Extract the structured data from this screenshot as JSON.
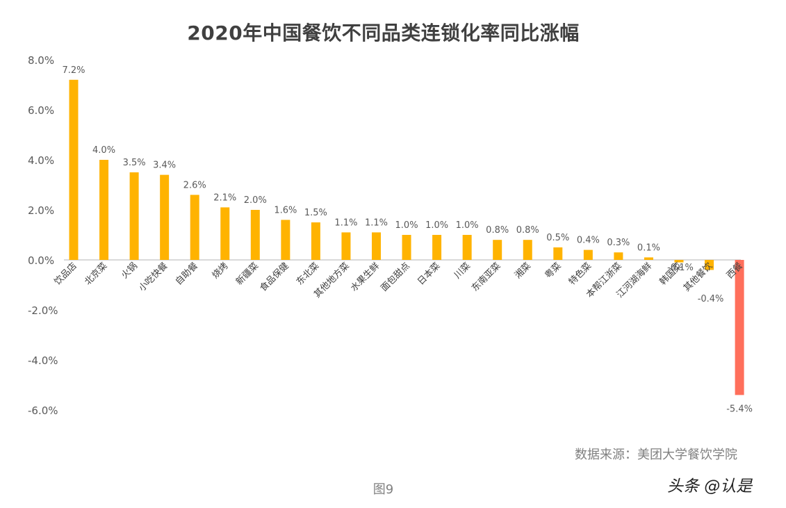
{
  "chart_data": {
    "type": "bar",
    "title": "2020年中国餐饮不同品类连锁化率同比涨幅",
    "categories": [
      "饮品店",
      "北京菜",
      "火锅",
      "小吃快餐",
      "自助餐",
      "烧烤",
      "新疆菜",
      "食品保健",
      "东北菜",
      "其他地方菜",
      "水果生鲜",
      "面包甜点",
      "日本菜",
      "川菜",
      "东南亚菜",
      "湘菜",
      "粤菜",
      "特色菜",
      "本帮江浙菜",
      "江河湖海鲜",
      "韩国菜",
      "其他餐饮",
      "西餐"
    ],
    "values": [
      7.2,
      4.0,
      3.5,
      3.4,
      2.6,
      2.1,
      2.0,
      1.6,
      1.5,
      1.1,
      1.1,
      1.0,
      1.0,
      1.0,
      0.8,
      0.8,
      0.5,
      0.4,
      0.3,
      0.1,
      -0.1,
      -0.4,
      -5.4
    ],
    "value_labels": [
      "7.2%",
      "4.0%",
      "3.5%",
      "3.4%",
      "2.6%",
      "2.1%",
      "2.0%",
      "1.6%",
      "1.5%",
      "1.1%",
      "1.1%",
      "1.0%",
      "1.0%",
      "1.0%",
      "0.8%",
      "0.8%",
      "0.5%",
      "0.4%",
      "0.3%",
      "0.1%",
      "-0.1%",
      "-0.4%",
      "-5.4%"
    ],
    "ylim": [
      -6.0,
      8.0
    ],
    "yticks": [
      8.0,
      6.0,
      4.0,
      2.0,
      0.0,
      -2.0,
      -4.0,
      -6.0
    ],
    "ytick_labels": [
      "8.0%",
      "6.0%",
      "4.0%",
      "2.0%",
      "0.0%",
      "-2.0%",
      "-4.0%",
      "-6.0%"
    ],
    "grid": false,
    "colors": {
      "positive": "#FFB300",
      "highlight": "#FF6F5B",
      "axis": "#d9d9d9"
    },
    "highlight_index": 22
  },
  "source_text": "数据来源：美团大学餐饮学院",
  "caption": "图9",
  "watermark": "头条 @认是"
}
